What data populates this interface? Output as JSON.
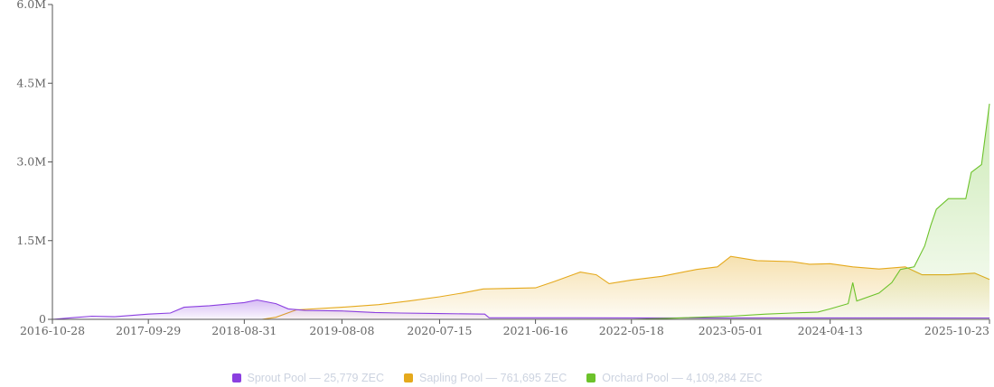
{
  "chart_data": {
    "type": "area",
    "title": "",
    "xlabel": "",
    "ylabel": "",
    "x_domain": [
      "2016-10-28",
      "2025-10-23"
    ],
    "ylim": [
      0,
      6000000
    ],
    "y_ticks": [
      0,
      1500000,
      3000000,
      4500000,
      6000000
    ],
    "y_tick_labels": [
      "0",
      "1.5M",
      "3.0M",
      "4.5M",
      "6.0M"
    ],
    "x_tick_labels": [
      "2016-10-28",
      "2017-09-29",
      "2018-08-31",
      "2019-08-08",
      "2020-07-15",
      "2021-06-16",
      "2022-05-18",
      "2023-05-01",
      "2024-04-13",
      "2025-10-23"
    ],
    "grid": false,
    "legend_position": "bottom",
    "series": [
      {
        "name": "Sprout Pool",
        "legend": "Sprout Pool — 25,779 ZEC",
        "color": "#8b3fe0",
        "points": [
          [
            "2016-10-28",
            0
          ],
          [
            "2017-01-01",
            30000
          ],
          [
            "2017-03-15",
            60000
          ],
          [
            "2017-06-01",
            50000
          ],
          [
            "2017-09-29",
            100000
          ],
          [
            "2017-12-15",
            120000
          ],
          [
            "2018-02-01",
            230000
          ],
          [
            "2018-05-01",
            260000
          ],
          [
            "2018-08-31",
            320000
          ],
          [
            "2018-10-15",
            370000
          ],
          [
            "2018-12-20",
            300000
          ],
          [
            "2019-02-01",
            200000
          ],
          [
            "2019-04-01",
            170000
          ],
          [
            "2019-08-08",
            160000
          ],
          [
            "2019-12-01",
            130000
          ],
          [
            "2020-03-01",
            120000
          ],
          [
            "2020-07-15",
            110000
          ],
          [
            "2020-12-20",
            100000
          ],
          [
            "2021-01-05",
            30000
          ],
          [
            "2022-05-18",
            28000
          ],
          [
            "2024-04-13",
            27000
          ],
          [
            "2025-10-23",
            25779
          ]
        ]
      },
      {
        "name": "Sapling Pool",
        "legend": "Sapling Pool — 761,695 ZEC",
        "color": "#e5a91c",
        "points": [
          [
            "2018-11-01",
            0
          ],
          [
            "2018-12-20",
            40000
          ],
          [
            "2019-03-01",
            180000
          ],
          [
            "2019-08-08",
            230000
          ],
          [
            "2019-12-15",
            280000
          ],
          [
            "2020-04-01",
            350000
          ],
          [
            "2020-07-15",
            430000
          ],
          [
            "2020-10-01",
            500000
          ],
          [
            "2020-12-15",
            580000
          ],
          [
            "2021-06-16",
            600000
          ],
          [
            "2021-08-20",
            720000
          ],
          [
            "2021-11-20",
            900000
          ],
          [
            "2022-01-15",
            850000
          ],
          [
            "2022-03-01",
            680000
          ],
          [
            "2022-05-18",
            750000
          ],
          [
            "2022-09-01",
            820000
          ],
          [
            "2023-01-01",
            950000
          ],
          [
            "2023-03-15",
            1000000
          ],
          [
            "2023-05-01",
            1200000
          ],
          [
            "2023-08-01",
            1120000
          ],
          [
            "2023-12-01",
            1100000
          ],
          [
            "2024-02-01",
            1050000
          ],
          [
            "2024-04-13",
            1060000
          ],
          [
            "2024-07-01",
            1000000
          ],
          [
            "2024-10-01",
            960000
          ],
          [
            "2025-01-01",
            1000000
          ],
          [
            "2025-03-01",
            850000
          ],
          [
            "2025-06-01",
            850000
          ],
          [
            "2025-09-01",
            880000
          ],
          [
            "2025-10-23",
            761695
          ]
        ]
      },
      {
        "name": "Orchard Pool",
        "legend": "Orchard Pool — 4,109,284 ZEC",
        "color": "#6cc22a",
        "points": [
          [
            "2022-05-18",
            0
          ],
          [
            "2022-10-01",
            20000
          ],
          [
            "2023-05-01",
            60000
          ],
          [
            "2023-09-01",
            100000
          ],
          [
            "2023-12-01",
            120000
          ],
          [
            "2024-03-01",
            140000
          ],
          [
            "2024-04-13",
            200000
          ],
          [
            "2024-06-15",
            300000
          ],
          [
            "2024-07-01",
            700000
          ],
          [
            "2024-07-15",
            350000
          ],
          [
            "2024-10-01",
            500000
          ],
          [
            "2024-11-15",
            700000
          ],
          [
            "2024-12-15",
            950000
          ],
          [
            "2025-02-01",
            1000000
          ],
          [
            "2025-03-10",
            1400000
          ],
          [
            "2025-04-01",
            1800000
          ],
          [
            "2025-04-20",
            2100000
          ],
          [
            "2025-06-01",
            2300000
          ],
          [
            "2025-08-01",
            2300000
          ],
          [
            "2025-08-20",
            2800000
          ],
          [
            "2025-09-25",
            2950000
          ],
          [
            "2025-10-23",
            4109284
          ]
        ]
      }
    ]
  }
}
